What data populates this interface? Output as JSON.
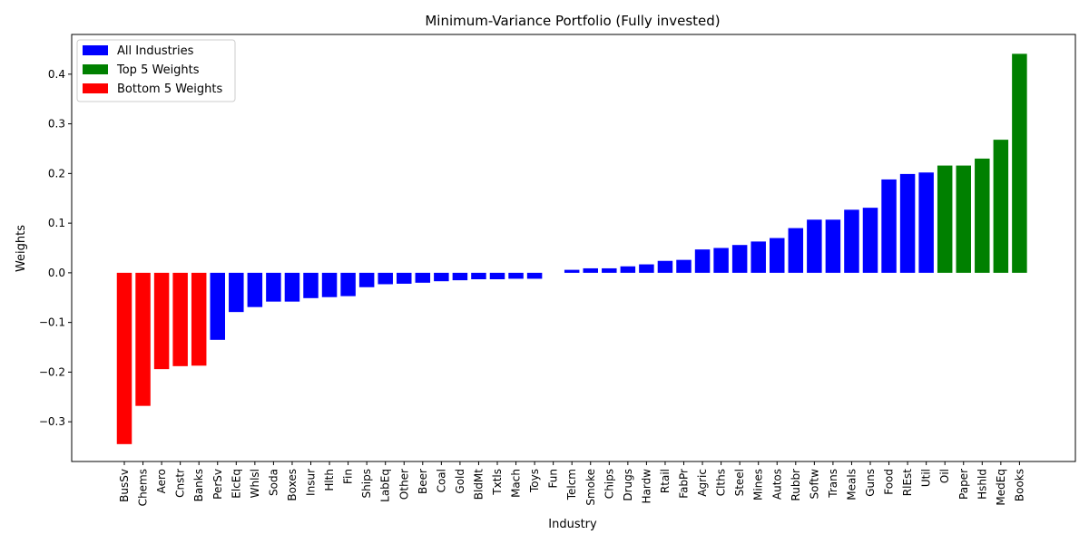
{
  "chart_data": {
    "type": "bar",
    "title": "Minimum-Variance Portfolio (Fully invested)",
    "xlabel": "Industry",
    "ylabel": "Weights",
    "ylim": [
      -0.38,
      0.48
    ],
    "yticks": [
      -0.3,
      -0.2,
      -0.1,
      0.0,
      0.1,
      0.2,
      0.3,
      0.4
    ],
    "ytick_labels": [
      "−0.3",
      "−0.2",
      "−0.1",
      "0.0",
      "0.1",
      "0.2",
      "0.3",
      "0.4"
    ],
    "legend_position": "top-left",
    "grid": false,
    "legend": [
      {
        "label": "All Industries",
        "color": "#0000ff"
      },
      {
        "label": "Top 5 Weights",
        "color": "#008000"
      },
      {
        "label": "Bottom 5 Weights",
        "color": "#ff0000"
      }
    ],
    "categories": [
      "BusSv",
      "Chems",
      "Aero",
      "Cnstr",
      "Banks",
      "PerSv",
      "ElcEq",
      "Whlsl",
      "Soda",
      "Boxes",
      "Insur",
      "Hlth",
      "Fin",
      "Ships",
      "LabEq",
      "Other",
      "Beer",
      "Coal",
      "Gold",
      "BldMt",
      "Txtls",
      "Mach",
      "Toys",
      "Fun",
      "Telcm",
      "Smoke",
      "Chips",
      "Drugs",
      "Hardw",
      "Rtail",
      "FabPr",
      "Agric",
      "Clths",
      "Steel",
      "Mines",
      "Autos",
      "Rubbr",
      "Softw",
      "Trans",
      "Meals",
      "Guns",
      "Food",
      "RlEst",
      "Util",
      "Oil",
      "Paper",
      "Hshld",
      "MedEq",
      "Books"
    ],
    "values": [
      -0.345,
      -0.268,
      -0.194,
      -0.188,
      -0.187,
      -0.135,
      -0.079,
      -0.069,
      -0.058,
      -0.058,
      -0.051,
      -0.049,
      -0.047,
      -0.029,
      -0.023,
      -0.022,
      -0.02,
      -0.017,
      -0.015,
      -0.013,
      -0.013,
      -0.012,
      -0.012,
      0.0,
      0.006,
      0.009,
      0.009,
      0.013,
      0.017,
      0.024,
      0.026,
      0.047,
      0.05,
      0.056,
      0.063,
      0.07,
      0.09,
      0.107,
      0.107,
      0.127,
      0.131,
      0.188,
      0.199,
      0.202,
      0.216,
      0.216,
      0.23,
      0.268,
      0.441
    ],
    "groups": [
      "bottom",
      "bottom",
      "bottom",
      "bottom",
      "bottom",
      "all",
      "all",
      "all",
      "all",
      "all",
      "all",
      "all",
      "all",
      "all",
      "all",
      "all",
      "all",
      "all",
      "all",
      "all",
      "all",
      "all",
      "all",
      "all",
      "all",
      "all",
      "all",
      "all",
      "all",
      "all",
      "all",
      "all",
      "all",
      "all",
      "all",
      "all",
      "all",
      "all",
      "all",
      "all",
      "all",
      "all",
      "all",
      "all",
      "top",
      "top",
      "top",
      "top",
      "top"
    ],
    "colors": {
      "all": "#0000ff",
      "top": "#008000",
      "bottom": "#ff0000"
    }
  }
}
